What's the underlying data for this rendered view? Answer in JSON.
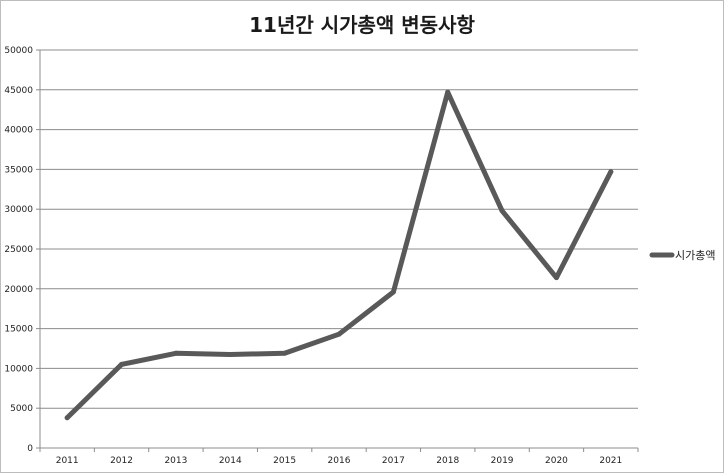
{
  "chart_data": {
    "type": "line",
    "title": "11년간 시가총액 변동사항",
    "xlabel": "",
    "ylabel": "",
    "categories": [
      "2011",
      "2012",
      "2013",
      "2014",
      "2015",
      "2016",
      "2017",
      "2018",
      "2019",
      "2020",
      "2021"
    ],
    "series": [
      {
        "name": "시가총액",
        "values": [
          3800,
          10500,
          11900,
          11750,
          11900,
          14300,
          19600,
          44700,
          29800,
          21400,
          34700
        ]
      }
    ],
    "ylim": [
      0,
      50000
    ],
    "yticks": [
      "0",
      "5000",
      "10000",
      "15000",
      "20000",
      "25000",
      "30000",
      "35000",
      "40000",
      "45000",
      "50000"
    ],
    "grid": "horizontal",
    "legend": "right",
    "colors": {
      "line": "#595959",
      "grid": "#8c8c8c",
      "axis": "#8c8c8c"
    }
  }
}
